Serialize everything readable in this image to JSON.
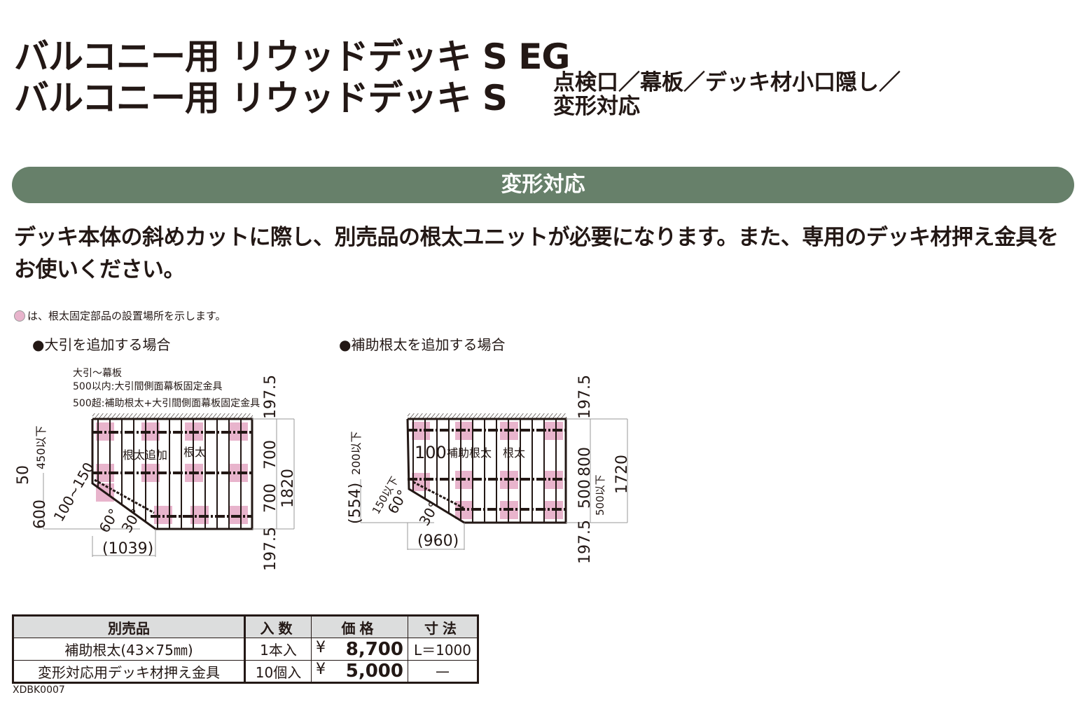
{
  "title": {
    "line1": "バルコニー用 リウッドデッキ S EG",
    "line2": "バルコニー用 リウッドデッキ S",
    "sub1": "点検口／幕板／デッキ材小口隠し／",
    "sub2": "変形対応"
  },
  "section": {
    "label": "変形対応",
    "color": "#67806a"
  },
  "description": "デッキ本体の斜めカットに際し、別売品の根太ユニットが必要になります。また、専用のデッキ材押え金具をお使いください。",
  "legend_note": "は、根太固定部品の設置場所を示します。",
  "legend_color": "#e8b4cc",
  "diagram_left": {
    "heading": "●大引を追加する場合",
    "note1": "大引～幕板",
    "note2": "500以内:大引間側面幕板固定金具",
    "note3": "500超:補助根太+大引間側面幕板固定金具",
    "label_add": "根太追加",
    "label_joist": "根太",
    "dims": {
      "top": "197.5",
      "mid1": "700",
      "mid2": "700",
      "total": "1820",
      "bottom": "197.5",
      "left_max": "450以下",
      "left50": "50",
      "left600": "600",
      "range": "100~150",
      "angle60": "60°",
      "angle30": "30°",
      "width": "(1039)"
    }
  },
  "diagram_right": {
    "heading": "●補助根太を追加する場合",
    "label_aux": "補助根太",
    "label_joist": "根太",
    "dims": {
      "top": "197.5",
      "mid1": "800",
      "mid2": "500",
      "mid2_note": "500以下",
      "total": "1720",
      "bottom": "197.5",
      "left_max": "200以下",
      "d100": "100",
      "left554": "(554)",
      "max150": "150以下",
      "angle60": "60°",
      "angle30": "30°",
      "width": "(960)"
    }
  },
  "table": {
    "headers": [
      "別売品",
      "入数",
      "価格",
      "寸法"
    ],
    "rows": [
      {
        "name": "補助根太(43×75㎜)",
        "qty": "1本入",
        "currency": "¥",
        "price": "8,700",
        "size": "L＝1000"
      },
      {
        "name": "変形対応用デッキ材押え金具",
        "qty": "10個入",
        "currency": "¥",
        "price": "5,000",
        "size": "—"
      }
    ]
  },
  "code": "XDBK0007"
}
